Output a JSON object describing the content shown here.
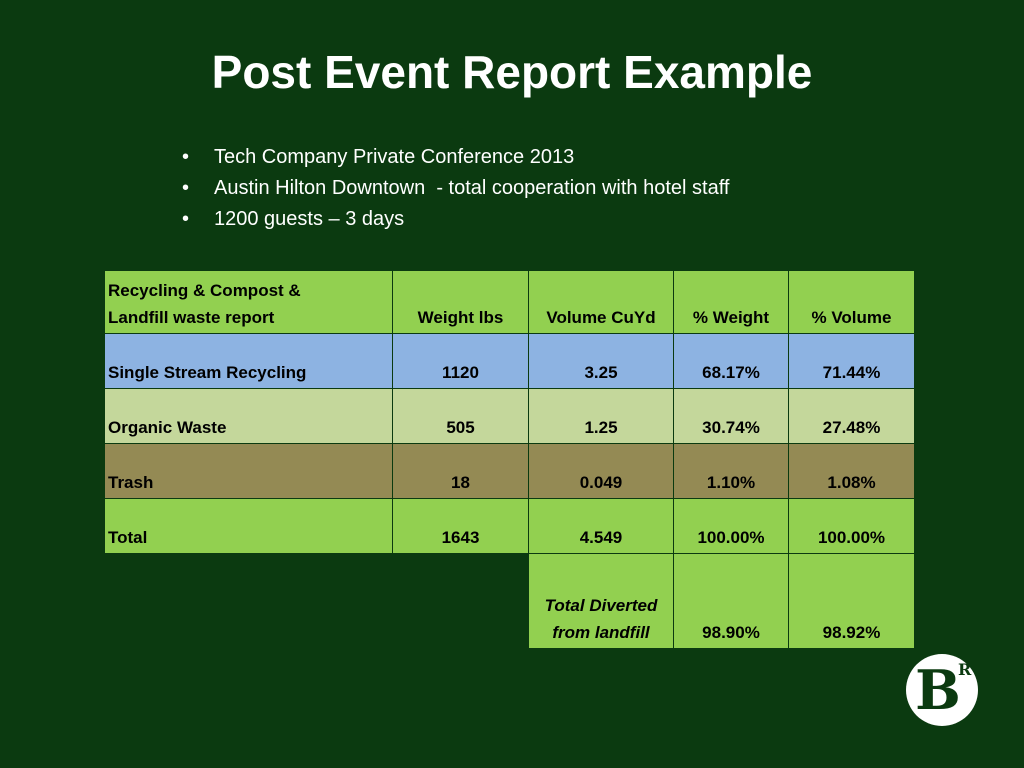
{
  "title": "Post Event Report Example",
  "bullets": [
    "Tech Company Private Conference 2013",
    "Austin Hilton Downtown  - total cooperation with hotel staff",
    "1200 guests – 3 days"
  ],
  "table": {
    "header": {
      "label_line1": "Recycling & Compost &",
      "label_line2": "Landfill waste report",
      "weight": "Weight lbs",
      "volume": "Volume CuYd",
      "pct_weight": "% Weight",
      "pct_volume": "% Volume"
    },
    "rows": [
      {
        "label": "Single Stream Recycling",
        "weight": "1120",
        "volume": "3.25",
        "pct_weight": "68.17%",
        "pct_volume": "71.44%"
      },
      {
        "label": "Organic Waste",
        "weight": "505",
        "volume": "1.25",
        "pct_weight": "30.74%",
        "pct_volume": "27.48%"
      },
      {
        "label": "Trash",
        "weight": "18",
        "volume": "0.049",
        "pct_weight": "1.10%",
        "pct_volume": "1.08%"
      },
      {
        "label": "Total",
        "weight": "1643",
        "volume": "4.549",
        "pct_weight": "100.00%",
        "pct_volume": "100.00%"
      }
    ],
    "diverted": {
      "label_line1": "Total Diverted",
      "label_line2": "from landfill",
      "pct_weight": "98.90%",
      "pct_volume": "98.92%"
    },
    "colors": {
      "header": "#92d050",
      "recycling": "#8db3e2",
      "organic": "#c4d79b",
      "trash": "#948a54",
      "total": "#92d050"
    }
  },
  "logo": {
    "letter": "B",
    "superscript": "R",
    "icon": "br-logo-icon"
  }
}
